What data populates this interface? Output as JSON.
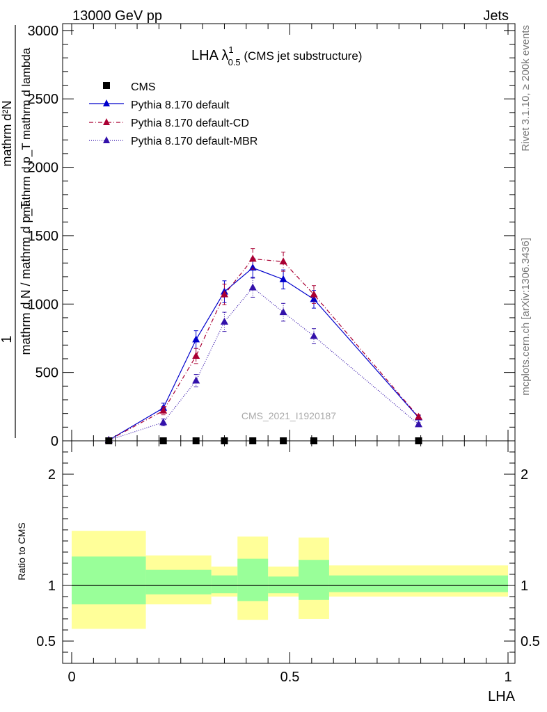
{
  "header": {
    "left": "13000 GeV pp",
    "right": "Jets"
  },
  "side_labels": {
    "rivet": "Rivet 3.1.10, ≥ 200k events",
    "mcplots": "mcplots.cern.ch [arXiv:1306.3436]"
  },
  "main_plot": {
    "title_main": "LHA λ",
    "title_sup": "1",
    "title_sub": "0.5",
    "title_suffix": " (CMS jet substructure)",
    "watermark": "CMS_2021_I1920187",
    "ylabel_top_num": "mathrm d²N",
    "ylabel_top_den": "mathrm d p_T mathrm d lambda",
    "ylabel_outer_num": "1",
    "ylabel_outer_den": "mathrm d N / mathrm d p_T"
  },
  "ratio_plot": {
    "ylabel": "Ratio to CMS",
    "xlabel": "LHA"
  },
  "chart_data": {
    "type": "line",
    "x_axis": {
      "label": "LHA",
      "range": [
        0,
        1
      ],
      "ticks": [
        0,
        0.5,
        1
      ],
      "tick_labels": [
        "0",
        "0.5",
        "1"
      ]
    },
    "y_axis_main": {
      "range": [
        0,
        3050
      ],
      "ticks": [
        0,
        500,
        1000,
        1500,
        2000,
        2500,
        3000
      ],
      "tick_labels": [
        "0",
        "500",
        "1000",
        "1500",
        "2000",
        "2500",
        "3000"
      ]
    },
    "y_axis_ratio": {
      "range": [
        0.3,
        2.3
      ],
      "ticks": [
        0.5,
        1,
        2
      ],
      "tick_labels": [
        "0.5",
        "1",
        "2"
      ]
    },
    "legend": {
      "position": "top-left",
      "entries": [
        "CMS",
        "Pythia 8.170 default",
        "Pythia 8.170 default-CD",
        "Pythia 8.170 default-MBR"
      ]
    },
    "colors": {
      "default": "#0000cc",
      "cd": "#aa0033",
      "mbr": "#3311aa",
      "band_inner": "#99ff99",
      "band_outer": "#ffff99"
    },
    "data": {
      "name": "CMS",
      "x": [
        0.085,
        0.21,
        0.285,
        0.35,
        0.415,
        0.485,
        0.555,
        0.795
      ],
      "y": [
        0,
        0,
        0,
        0,
        0,
        0,
        0,
        0
      ]
    },
    "series": [
      {
        "name": "Pythia 8.170 default",
        "x": [
          0.085,
          0.21,
          0.285,
          0.35,
          0.415,
          0.485,
          0.555,
          0.795
        ],
        "y": [
          5,
          240,
          740,
          1090,
          1265,
          1180,
          1035,
          170
        ],
        "err": [
          5,
          35,
          65,
          80,
          70,
          70,
          65,
          15
        ]
      },
      {
        "name": "Pythia 8.170 default-CD",
        "x": [
          0.085,
          0.21,
          0.285,
          0.35,
          0.415,
          0.485,
          0.555,
          0.795
        ],
        "y": [
          5,
          220,
          620,
          1070,
          1330,
          1310,
          1070,
          175
        ],
        "err": [
          5,
          30,
          55,
          75,
          75,
          70,
          65,
          15
        ]
      },
      {
        "name": "Pythia 8.170 default-MBR",
        "x": [
          0.085,
          0.21,
          0.285,
          0.35,
          0.415,
          0.485,
          0.555,
          0.795
        ],
        "y": [
          5,
          135,
          440,
          870,
          1120,
          940,
          765,
          120
        ],
        "err": [
          5,
          25,
          45,
          70,
          70,
          65,
          55,
          12
        ]
      }
    ],
    "ratio_bands": [
      {
        "xlo": 0.0,
        "xhi": 0.17,
        "inner": [
          0.83,
          1.26
        ],
        "outer": [
          0.61,
          1.49
        ]
      },
      {
        "xlo": 0.17,
        "xhi": 0.32,
        "inner": [
          0.92,
          1.14
        ],
        "outer": [
          0.83,
          1.27
        ]
      },
      {
        "xlo": 0.32,
        "xhi": 0.38,
        "inner": [
          0.93,
          1.09
        ],
        "outer": [
          0.9,
          1.17
        ]
      },
      {
        "xlo": 0.38,
        "xhi": 0.45,
        "inner": [
          0.86,
          1.24
        ],
        "outer": [
          0.69,
          1.44
        ]
      },
      {
        "xlo": 0.45,
        "xhi": 0.52,
        "inner": [
          0.93,
          1.08
        ],
        "outer": [
          0.9,
          1.17
        ]
      },
      {
        "xlo": 0.52,
        "xhi": 0.59,
        "inner": [
          0.87,
          1.23
        ],
        "outer": [
          0.7,
          1.43
        ]
      },
      {
        "xlo": 0.59,
        "xhi": 1.0,
        "inner": [
          0.94,
          1.09
        ],
        "outer": [
          0.9,
          1.18
        ]
      }
    ]
  }
}
